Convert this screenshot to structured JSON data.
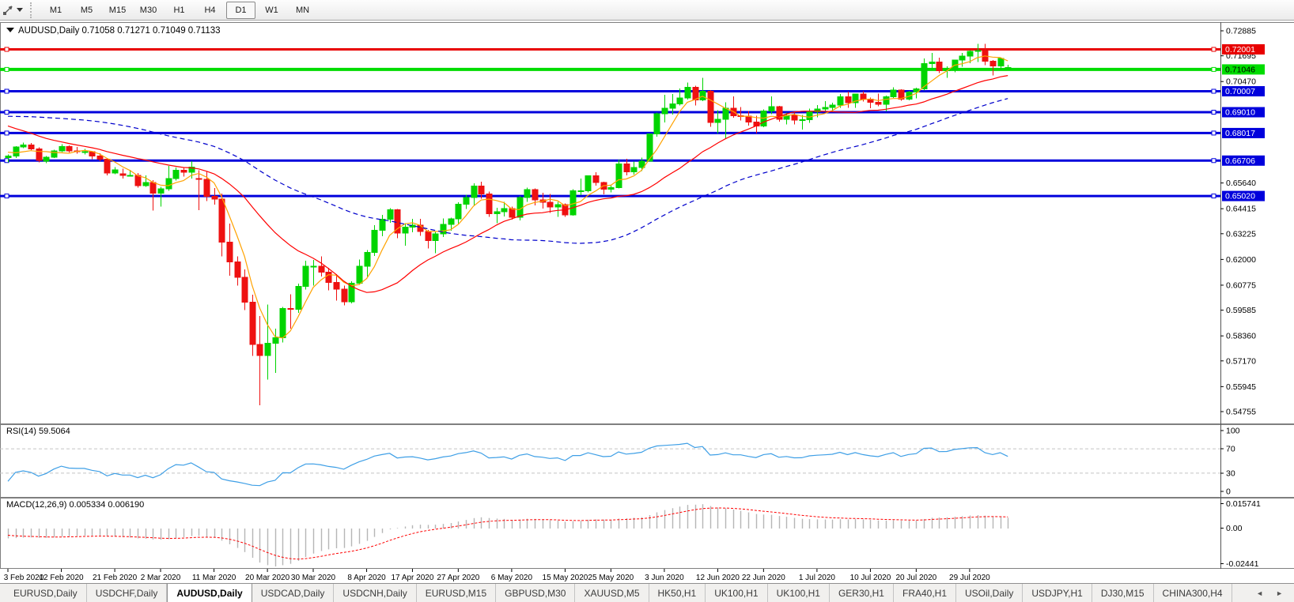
{
  "toolbar": {
    "tool_icon": "crosshair-tool",
    "timeframes": [
      "M1",
      "M5",
      "M15",
      "M30",
      "H1",
      "H4",
      "D1",
      "W1",
      "MN"
    ],
    "active_timeframe": "D1"
  },
  "chart": {
    "title": {
      "symbol": "AUDUSD,Daily",
      "open": "0.71058",
      "high": "0.71271",
      "low": "0.71049",
      "close": "0.71133"
    },
    "price_axis": {
      "ticks": [
        "0.72885",
        "0.71695",
        "0.70470",
        "0.65640",
        "0.64415",
        "0.63225",
        "0.62000",
        "0.60775",
        "0.59585",
        "0.58360",
        "0.57170",
        "0.55945",
        "0.54755"
      ]
    },
    "hlines": [
      {
        "label": "0.72001",
        "value": 0.72001,
        "color": "#e80000",
        "text_color": "#ffffff",
        "width": 3
      },
      {
        "label": "0.71046",
        "value": 0.71046,
        "color": "#00dc00",
        "text_color": "#000000",
        "width": 4
      },
      {
        "label": "0.70007",
        "value": 0.70007,
        "color": "#0000dc",
        "text_color": "#ffffff",
        "width": 3
      },
      {
        "label": "0.69010",
        "value": 0.6901,
        "color": "#0000dc",
        "text_color": "#ffffff",
        "width": 3
      },
      {
        "label": "0.68017",
        "value": 0.68017,
        "color": "#0000dc",
        "text_color": "#ffffff",
        "width": 3
      },
      {
        "label": "0.66706",
        "value": 0.66706,
        "color": "#0000dc",
        "text_color": "#ffffff",
        "width": 3
      },
      {
        "label": "0.65020",
        "value": 0.6502,
        "color": "#0000dc",
        "text_color": "#ffffff",
        "width": 3
      }
    ],
    "x_axis": {
      "ticks": [
        {
          "label": "3 Feb 2020",
          "i": 0
        },
        {
          "label": "12 Feb 2020",
          "i": 7
        },
        {
          "label": "21 Feb 2020",
          "i": 14
        },
        {
          "label": "2 Mar 2020",
          "i": 20
        },
        {
          "label": "11 Mar 2020",
          "i": 27
        },
        {
          "label": "20 Mar 2020",
          "i": 34
        },
        {
          "label": "30 Mar 2020",
          "i": 40
        },
        {
          "label": "8 Apr 2020",
          "i": 47
        },
        {
          "label": "17 Apr 2020",
          "i": 53
        },
        {
          "label": "27 Apr 2020",
          "i": 59
        },
        {
          "label": "6 May 2020",
          "i": 66
        },
        {
          "label": "15 May 2020",
          "i": 73
        },
        {
          "label": "25 May 2020",
          "i": 79
        },
        {
          "label": "3 Jun 2020",
          "i": 86
        },
        {
          "label": "12 Jun 2020",
          "i": 93
        },
        {
          "label": "22 Jun 2020",
          "i": 99
        },
        {
          "label": "1 Jul 2020",
          "i": 106
        },
        {
          "label": "10 Jul 2020",
          "i": 113
        },
        {
          "label": "20 Jul 2020",
          "i": 119
        },
        {
          "label": "29 Jul 2020",
          "i": 126
        }
      ]
    },
    "indicators": {
      "ma": [
        {
          "period": 5,
          "color": "#ffa200",
          "style": "solid"
        },
        {
          "period": 20,
          "color": "#ff0000",
          "style": "solid"
        },
        {
          "period": 50,
          "color": "#0000cc",
          "style": "dash"
        }
      ],
      "rsi": {
        "label": "RSI(14)",
        "value": "59.5064",
        "period": 14,
        "levels": [
          70,
          30
        ],
        "scale_labels": [
          "100",
          "70",
          "30",
          "0"
        ],
        "color": "#3e9fe6"
      },
      "macd": {
        "label": "MACD(12,26,9)",
        "values": [
          "0.005334",
          "0.006190"
        ],
        "fast": 12,
        "slow": 26,
        "signal": 9,
        "scale_labels": [
          "0.015741",
          "0.00",
          "-0.02441"
        ],
        "hist_color": "#b6b6b6",
        "signal_color": "#ff0000"
      }
    }
  },
  "chart_data": {
    "type": "candlestick",
    "symbol": "AUDUSD",
    "timeframe": "Daily",
    "x_range": [
      "3 Feb 2020",
      "5 Aug 2020"
    ],
    "y_range": [
      0.54755,
      0.72885
    ],
    "warmup_closes": [
      0.6785,
      0.677,
      0.6766,
      0.6772,
      0.6764,
      0.6762,
      0.677,
      0.68,
      0.682,
      0.6838,
      0.685,
      0.684,
      0.6852,
      0.687,
      0.688,
      0.689,
      0.69,
      0.692,
      0.6938,
      0.695,
      0.696,
      0.6985,
      0.7,
      0.701,
      0.6995,
      0.6985,
      0.6978,
      0.699,
      0.7,
      0.7015,
      0.7022,
      0.701,
      0.6995,
      0.698,
      0.6965,
      0.695,
      0.6935,
      0.692,
      0.69,
      0.6885,
      0.687,
      0.6855,
      0.684,
      0.6825,
      0.6838,
      0.682,
      0.68,
      0.6776,
      0.675,
      0.672,
      0.67,
      0.669
    ],
    "candles": [
      [
        0.6685,
        0.67,
        0.6662,
        0.6692
      ],
      [
        0.6692,
        0.674,
        0.6682,
        0.6736
      ],
      [
        0.6736,
        0.6756,
        0.6729,
        0.6745
      ],
      [
        0.6745,
        0.6755,
        0.672,
        0.6727
      ],
      [
        0.6727,
        0.6733,
        0.6663,
        0.6671
      ],
      [
        0.6668,
        0.6692,
        0.6658,
        0.6687
      ],
      [
        0.6687,
        0.6723,
        0.6683,
        0.6716
      ],
      [
        0.6716,
        0.6748,
        0.6711,
        0.6738
      ],
      [
        0.6738,
        0.6744,
        0.671,
        0.6716
      ],
      [
        0.6716,
        0.6735,
        0.6703,
        0.6713
      ],
      [
        0.6713,
        0.6727,
        0.67,
        0.6713
      ],
      [
        0.6713,
        0.6717,
        0.6678,
        0.6692
      ],
      [
        0.6692,
        0.6705,
        0.6668,
        0.6677
      ],
      [
        0.6677,
        0.668,
        0.66,
        0.6611
      ],
      [
        0.6611,
        0.664,
        0.6605,
        0.6627
      ],
      [
        0.6607,
        0.6632,
        0.6585,
        0.6601
      ],
      [
        0.6601,
        0.6626,
        0.6595,
        0.6601
      ],
      [
        0.6601,
        0.6612,
        0.6542,
        0.6551
      ],
      [
        0.6551,
        0.66,
        0.6545,
        0.6567
      ],
      [
        0.6567,
        0.6577,
        0.6433,
        0.6515
      ],
      [
        0.6515,
        0.6545,
        0.6452,
        0.6536
      ],
      [
        0.6536,
        0.6646,
        0.6527,
        0.6585
      ],
      [
        0.6585,
        0.6637,
        0.6576,
        0.6624
      ],
      [
        0.6624,
        0.664,
        0.6595,
        0.6616
      ],
      [
        0.6616,
        0.6668,
        0.6585,
        0.6639
      ],
      [
        0.6585,
        0.6625,
        0.6434,
        0.6582
      ],
      [
        0.6582,
        0.6617,
        0.6477,
        0.65
      ],
      [
        0.65,
        0.654,
        0.6461,
        0.6487
      ],
      [
        0.6487,
        0.6514,
        0.6214,
        0.6283
      ],
      [
        0.6283,
        0.637,
        0.6123,
        0.6188
      ],
      [
        0.6188,
        0.6215,
        0.6076,
        0.6115
      ],
      [
        0.6115,
        0.6153,
        0.5958,
        0.5997
      ],
      [
        0.5997,
        0.6032,
        0.574,
        0.5795
      ],
      [
        0.5795,
        0.593,
        0.5506,
        0.5742
      ],
      [
        0.5742,
        0.5986,
        0.5627,
        0.58
      ],
      [
        0.58,
        0.587,
        0.566,
        0.5827
      ],
      [
        0.5827,
        0.5974,
        0.5805,
        0.5966
      ],
      [
        0.5966,
        0.6035,
        0.587,
        0.5962
      ],
      [
        0.5962,
        0.6085,
        0.5945,
        0.6071
      ],
      [
        0.6071,
        0.6193,
        0.6057,
        0.6167
      ],
      [
        0.6167,
        0.6197,
        0.6076,
        0.6168
      ],
      [
        0.6168,
        0.6214,
        0.6119,
        0.614
      ],
      [
        0.614,
        0.616,
        0.6053,
        0.6091
      ],
      [
        0.6091,
        0.613,
        0.6004,
        0.6059
      ],
      [
        0.6059,
        0.6076,
        0.5982,
        0.5999
      ],
      [
        0.5999,
        0.6096,
        0.599,
        0.6086
      ],
      [
        0.6086,
        0.62,
        0.608,
        0.6167
      ],
      [
        0.6167,
        0.6244,
        0.6119,
        0.6234
      ],
      [
        0.6234,
        0.6364,
        0.6216,
        0.6339
      ],
      [
        0.6339,
        0.6412,
        0.631,
        0.6392
      ],
      [
        0.6392,
        0.6445,
        0.6375,
        0.6437
      ],
      [
        0.6437,
        0.6441,
        0.6302,
        0.6325
      ],
      [
        0.6325,
        0.6372,
        0.6265,
        0.6354
      ],
      [
        0.6354,
        0.6394,
        0.6329,
        0.6364
      ],
      [
        0.6364,
        0.6394,
        0.6312,
        0.6334
      ],
      [
        0.6334,
        0.634,
        0.6253,
        0.629
      ],
      [
        0.629,
        0.6331,
        0.623,
        0.6321
      ],
      [
        0.6321,
        0.6395,
        0.6306,
        0.6367
      ],
      [
        0.6367,
        0.6398,
        0.6336,
        0.6394
      ],
      [
        0.6394,
        0.6472,
        0.6371,
        0.6463
      ],
      [
        0.6463,
        0.6508,
        0.6441,
        0.6495
      ],
      [
        0.6495,
        0.6562,
        0.6455,
        0.655
      ],
      [
        0.655,
        0.657,
        0.649,
        0.6512
      ],
      [
        0.6512,
        0.6523,
        0.6402,
        0.6417
      ],
      [
        0.6417,
        0.6446,
        0.6372,
        0.6428
      ],
      [
        0.6428,
        0.6475,
        0.6405,
        0.6443
      ],
      [
        0.6443,
        0.6452,
        0.6389,
        0.6401
      ],
      [
        0.6401,
        0.6503,
        0.6385,
        0.6495
      ],
      [
        0.6495,
        0.6542,
        0.6475,
        0.6533
      ],
      [
        0.6533,
        0.6538,
        0.6457,
        0.6484
      ],
      [
        0.6484,
        0.6518,
        0.6443,
        0.6472
      ],
      [
        0.6472,
        0.6512,
        0.6422,
        0.6449
      ],
      [
        0.6449,
        0.6475,
        0.6403,
        0.6461
      ],
      [
        0.6461,
        0.6467,
        0.6403,
        0.6413
      ],
      [
        0.6413,
        0.6535,
        0.6409,
        0.6526
      ],
      [
        0.6526,
        0.6585,
        0.6506,
        0.6527
      ],
      [
        0.6527,
        0.6601,
        0.652,
        0.6599
      ],
      [
        0.6599,
        0.6616,
        0.6551,
        0.6566
      ],
      [
        0.6566,
        0.657,
        0.6509,
        0.6534
      ],
      [
        0.6534,
        0.6552,
        0.6519,
        0.6542
      ],
      [
        0.6542,
        0.6675,
        0.6538,
        0.6655
      ],
      [
        0.6655,
        0.668,
        0.6601,
        0.6618
      ],
      [
        0.6618,
        0.6666,
        0.6603,
        0.6638
      ],
      [
        0.6638,
        0.6684,
        0.662,
        0.6667
      ],
      [
        0.6667,
        0.68,
        0.6666,
        0.6797
      ],
      [
        0.6797,
        0.6899,
        0.6785,
        0.6894
      ],
      [
        0.6894,
        0.6983,
        0.6852,
        0.6919
      ],
      [
        0.6919,
        0.6988,
        0.689,
        0.694
      ],
      [
        0.694,
        0.7014,
        0.6933,
        0.6968
      ],
      [
        0.6968,
        0.7043,
        0.6961,
        0.7019
      ],
      [
        0.7019,
        0.7027,
        0.6933,
        0.6959
      ],
      [
        0.6959,
        0.7064,
        0.6953,
        0.7
      ],
      [
        0.7,
        0.7007,
        0.6832,
        0.6853
      ],
      [
        0.6853,
        0.691,
        0.6799,
        0.6868
      ],
      [
        0.6868,
        0.6949,
        0.6776,
        0.692
      ],
      [
        0.692,
        0.6977,
        0.6875,
        0.6884
      ],
      [
        0.6884,
        0.6925,
        0.6862,
        0.6883
      ],
      [
        0.6883,
        0.6906,
        0.6837,
        0.6855
      ],
      [
        0.6855,
        0.6885,
        0.68,
        0.6835
      ],
      [
        0.6835,
        0.6914,
        0.683,
        0.6906
      ],
      [
        0.6906,
        0.6976,
        0.6891,
        0.6928
      ],
      [
        0.6928,
        0.6932,
        0.6856,
        0.6868
      ],
      [
        0.6868,
        0.6899,
        0.6842,
        0.6886
      ],
      [
        0.6886,
        0.69,
        0.6843,
        0.6864
      ],
      [
        0.6864,
        0.6888,
        0.6819,
        0.6865
      ],
      [
        0.6865,
        0.6918,
        0.6851,
        0.6903
      ],
      [
        0.6903,
        0.6934,
        0.6877,
        0.6916
      ],
      [
        0.6916,
        0.6954,
        0.6905,
        0.6924
      ],
      [
        0.6924,
        0.6946,
        0.6901,
        0.6935
      ],
      [
        0.6935,
        0.6988,
        0.6922,
        0.6975
      ],
      [
        0.6975,
        0.6998,
        0.6922,
        0.6946
      ],
      [
        0.6946,
        0.6989,
        0.6921,
        0.6987
      ],
      [
        0.6987,
        0.7001,
        0.6952,
        0.6963
      ],
      [
        0.6963,
        0.697,
        0.692,
        0.6948
      ],
      [
        0.6948,
        0.699,
        0.693,
        0.6938
      ],
      [
        0.6938,
        0.6981,
        0.6904,
        0.6975
      ],
      [
        0.6975,
        0.7019,
        0.6968,
        0.7006
      ],
      [
        0.7006,
        0.701,
        0.6955,
        0.6963
      ],
      [
        0.6963,
        0.7002,
        0.6957,
        0.6997
      ],
      [
        0.6997,
        0.7017,
        0.6966,
        0.7012
      ],
      [
        0.7012,
        0.7156,
        0.7005,
        0.7132
      ],
      [
        0.7132,
        0.7183,
        0.7107,
        0.714
      ],
      [
        0.714,
        0.716,
        0.7088,
        0.7098
      ],
      [
        0.7098,
        0.712,
        0.7064,
        0.7103
      ],
      [
        0.7103,
        0.7152,
        0.7091,
        0.7149
      ],
      [
        0.7149,
        0.7184,
        0.7118,
        0.7168
      ],
      [
        0.7168,
        0.7197,
        0.7135,
        0.719
      ],
      [
        0.719,
        0.7227,
        0.7139,
        0.7194
      ],
      [
        0.7194,
        0.7227,
        0.7125,
        0.7143
      ],
      [
        0.7143,
        0.7149,
        0.7076,
        0.7121
      ],
      [
        0.7121,
        0.716,
        0.7103,
        0.7157
      ],
      [
        0.7106,
        0.7127,
        0.7105,
        0.7113
      ]
    ]
  },
  "colors": {
    "up_candle": "#00d400",
    "down_candle": "#ee1111",
    "panel_border": "#7f7f7f",
    "axis_text": "#000000"
  },
  "tabs": {
    "items": [
      "EURUSD,Daily",
      "USDCHF,Daily",
      "AUDUSD,Daily",
      "USDCAD,Daily",
      "USDCNH,Daily",
      "EURUSD,M15",
      "GBPUSD,M30",
      "XAUUSD,M5",
      "HK50,H1",
      "UK100,H1",
      "UK100,H1",
      "GER30,H1",
      "FRA40,H1",
      "USOil,Daily",
      "USDJPY,H1",
      "DJ30,M15",
      "CHINA300,H4"
    ],
    "active_index": 2,
    "scroll_left": "◄",
    "scroll_right": "►"
  }
}
